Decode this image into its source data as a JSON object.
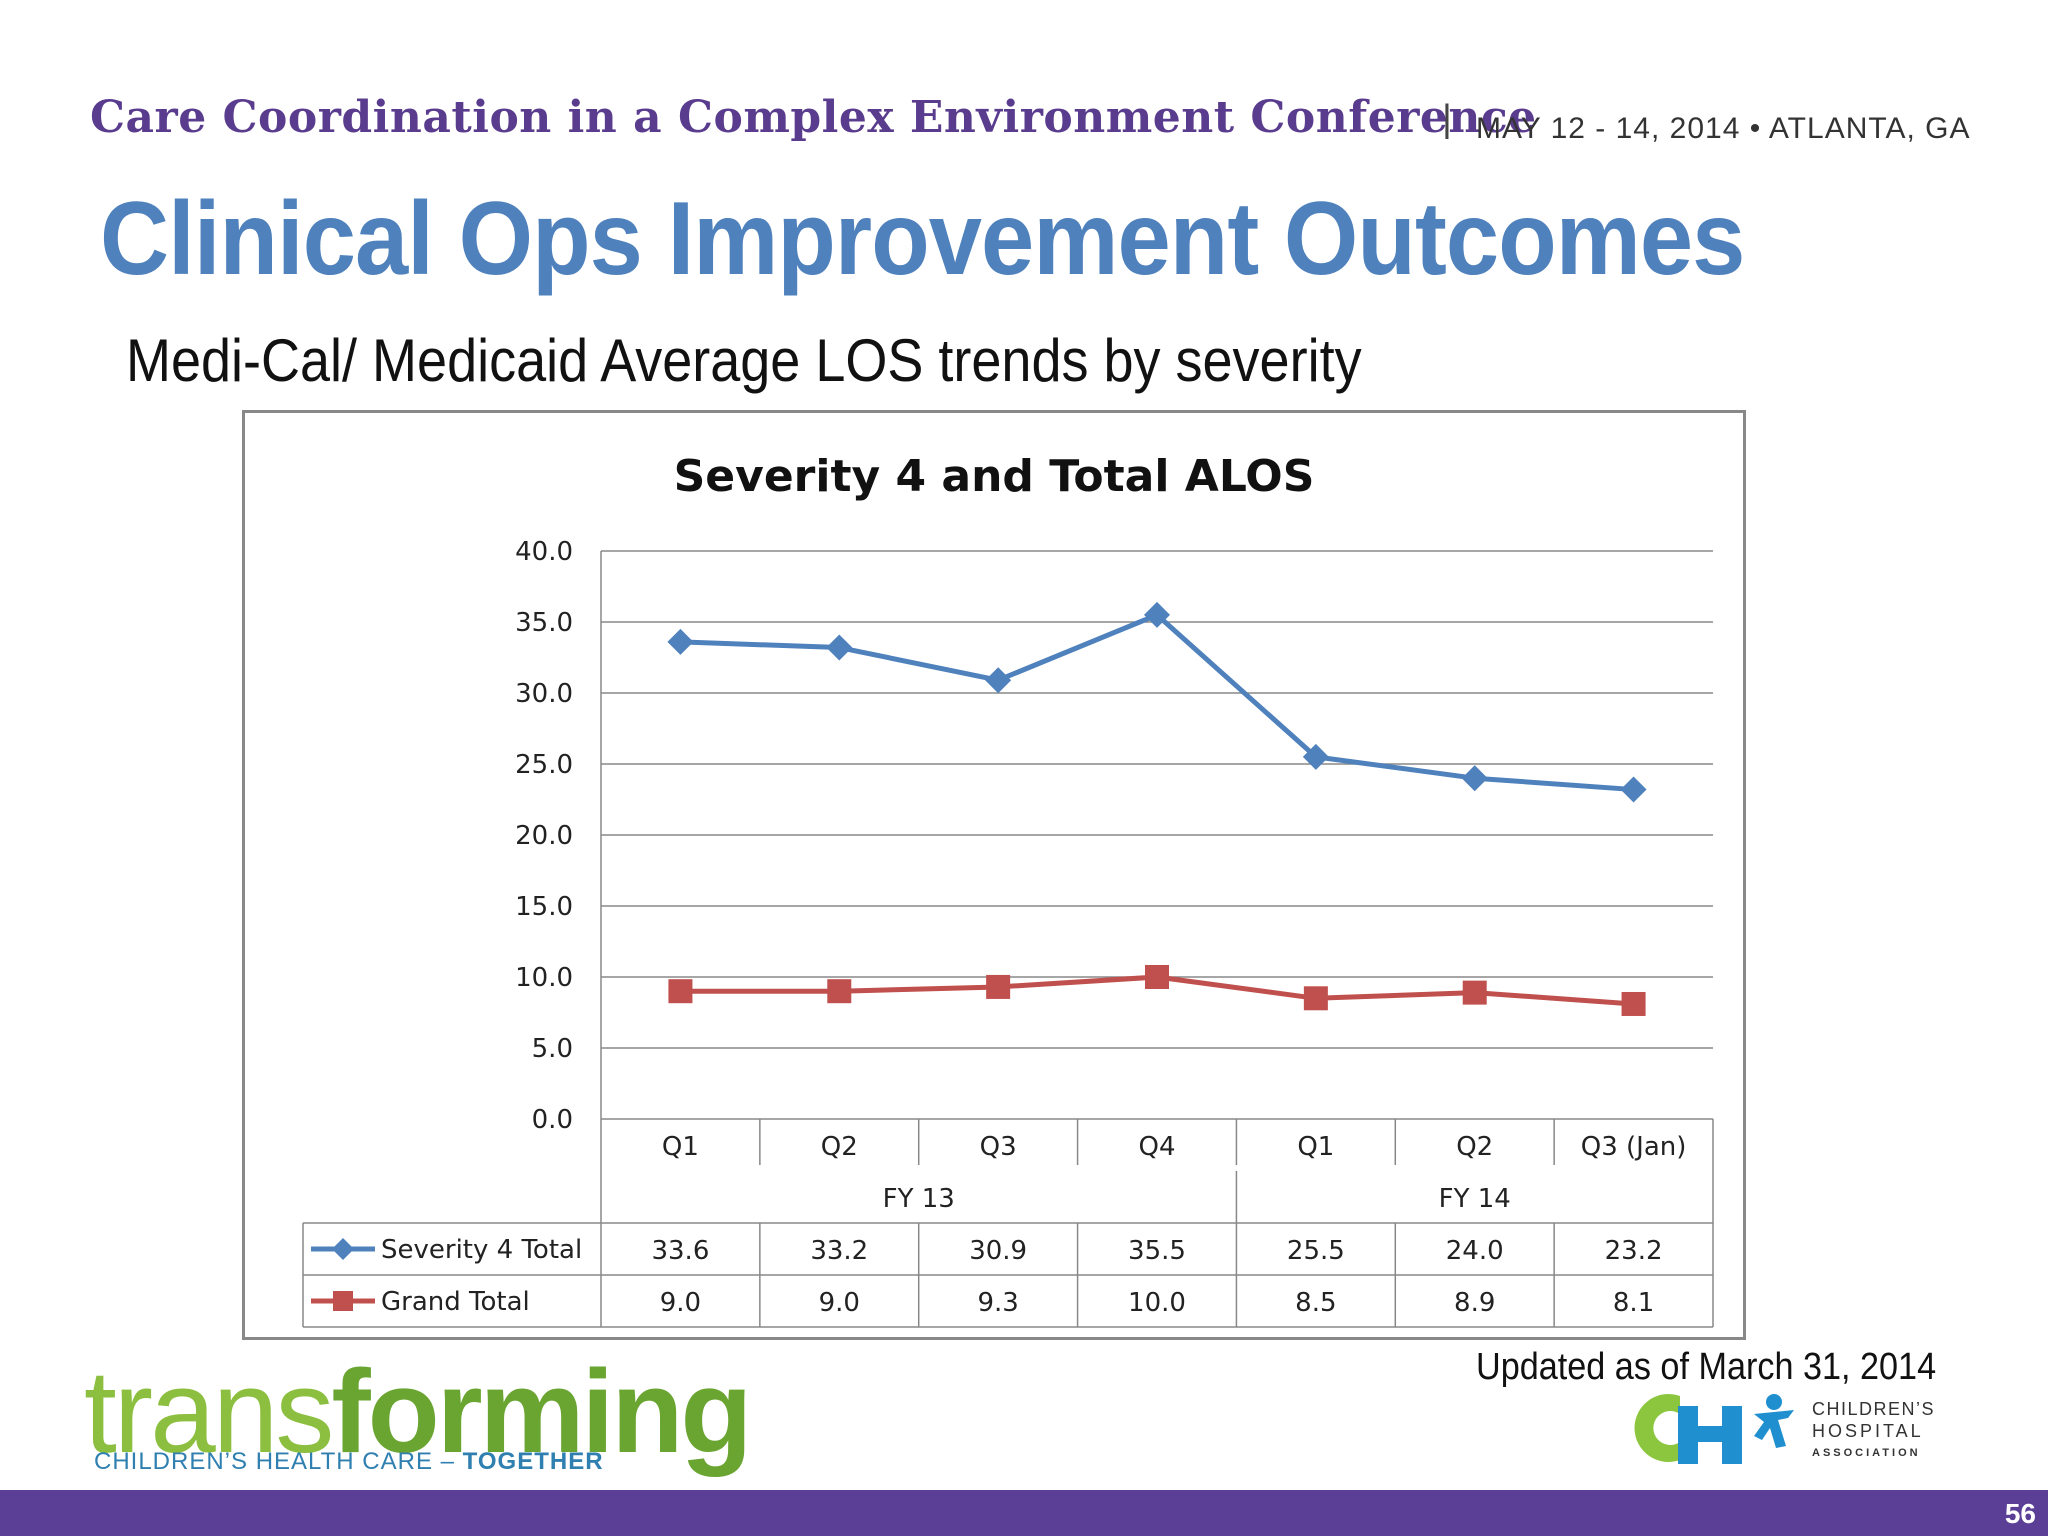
{
  "header": {
    "conference_title": "Care Coordination in a Complex Environment Conference",
    "separator": "|",
    "date_location": "MAY 12 - 14, 2014  •  ATLANTA, GA"
  },
  "slide": {
    "title": "Clinical Ops Improvement Outcomes",
    "subtitle": "Medi-Cal/ Medicaid Average LOS trends by severity",
    "updated_note": "Updated as of  March 31, 2014",
    "page_number": "56"
  },
  "logos": {
    "transforming_light": "trans",
    "transforming_bold": "forming",
    "tagline_main": "CHILDREN’S HEALTH CARE – ",
    "tagline_bold": "TOGETHER",
    "cha_line1": "CHILDREN’S",
    "cha_line2": "HOSPITAL",
    "cha_line3": "ASSOCIATION"
  },
  "colors": {
    "title_blue": "#4f81bd",
    "conference_purple": "#5a3c8e",
    "footer_purple": "#5b3f96",
    "series1": "#4f81bd",
    "series2": "#c0504d"
  },
  "chart_data": {
    "type": "line",
    "title": "Severity 4 and Total ALOS",
    "categories": [
      "Q1",
      "Q2",
      "Q3",
      "Q4",
      "Q1",
      "Q2",
      "Q3 (Jan)"
    ],
    "groups": [
      {
        "label": "FY 13",
        "count": 4
      },
      {
        "label": "FY 14",
        "count": 3
      }
    ],
    "series": [
      {
        "name": "Severity 4 Total",
        "values": [
          33.6,
          33.2,
          30.9,
          35.5,
          25.5,
          24.0,
          23.2
        ],
        "color": "#4f81bd",
        "marker": "diamond"
      },
      {
        "name": "Grand Total",
        "values": [
          9.0,
          9.0,
          9.3,
          10.0,
          8.5,
          8.9,
          8.1
        ],
        "color": "#c0504d",
        "marker": "square"
      }
    ],
    "ylim": [
      0,
      40
    ],
    "yticks": [
      0,
      5,
      10,
      15,
      20,
      25,
      30,
      35,
      40
    ],
    "ytick_format": "fixed1",
    "grid": true,
    "legend": "data-table"
  }
}
